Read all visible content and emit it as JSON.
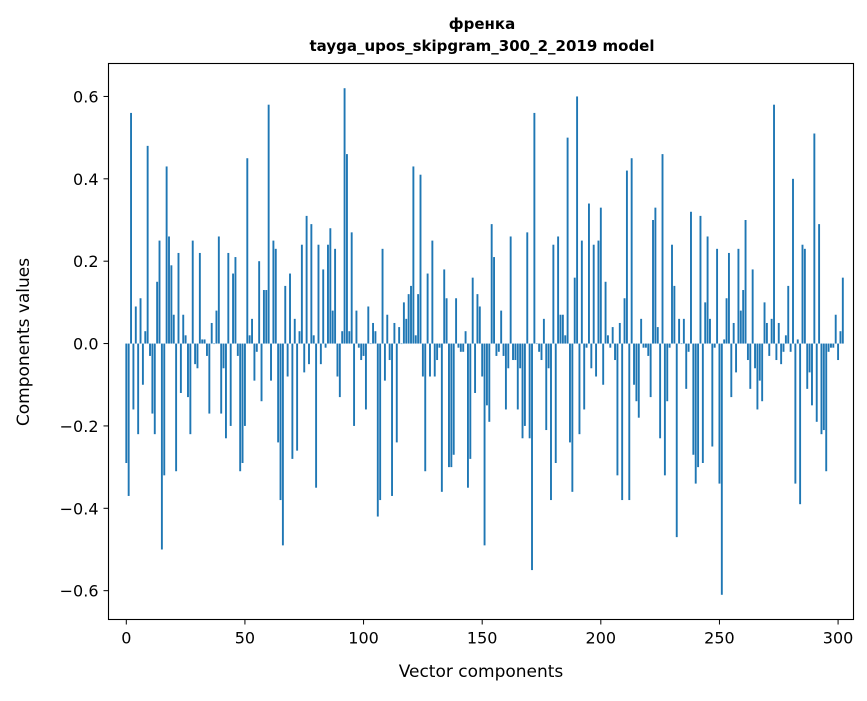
{
  "chart_data": {
    "type": "bar",
    "title": "френка",
    "subtitle": "tayga_upos_skipgram_300_2_2019 model",
    "xlabel": "Vector components",
    "ylabel": "Components values",
    "xlim": [
      -7.5,
      306.5
    ],
    "ylim": [
      -0.67,
      0.68
    ],
    "xticks": [
      0,
      50,
      100,
      150,
      200,
      250,
      300
    ],
    "yticks": [
      -0.6,
      -0.4,
      -0.2,
      0.0,
      0.2,
      0.4,
      0.6
    ],
    "ytick_labels": [
      "−0.6",
      "−0.4",
      "−0.2",
      "0.0",
      "0.2",
      "0.4",
      "0.6"
    ],
    "grid": false,
    "bar_color": "#1f77b4",
    "series": [
      {
        "values": [
          -0.29,
          -0.37,
          0.56,
          -0.16,
          0.09,
          -0.22,
          0.11,
          -0.1,
          0.03,
          0.48,
          -0.03,
          -0.17,
          -0.22,
          0.15,
          0.25,
          -0.5,
          -0.32,
          0.43,
          0.26,
          0.19,
          0.07,
          -0.31,
          0.22,
          -0.12,
          0.07,
          0.02,
          -0.13,
          -0.22,
          0.25,
          -0.05,
          -0.06,
          0.22,
          0.01,
          0.01,
          -0.03,
          -0.17,
          0.05,
          0.0,
          0.08,
          0.26,
          -0.17,
          -0.06,
          -0.23,
          0.22,
          -0.2,
          0.17,
          0.21,
          -0.03,
          -0.31,
          -0.29,
          -0.2,
          0.45,
          0.02,
          0.06,
          -0.09,
          -0.02,
          0.2,
          -0.14,
          0.13,
          0.13,
          0.58,
          -0.09,
          0.25,
          0.23,
          -0.24,
          -0.38,
          -0.49,
          0.14,
          -0.08,
          0.17,
          -0.28,
          0.06,
          -0.26,
          0.03,
          0.24,
          -0.07,
          0.31,
          -0.05,
          0.29,
          0.02,
          -0.35,
          0.24,
          -0.05,
          0.18,
          -0.01,
          0.24,
          0.28,
          0.08,
          0.23,
          -0.08,
          -0.13,
          0.03,
          0.62,
          0.46,
          0.03,
          0.27,
          -0.2,
          0.08,
          -0.01,
          -0.04,
          -0.03,
          -0.16,
          0.09,
          0.0,
          0.05,
          0.03,
          -0.42,
          -0.38,
          0.23,
          -0.09,
          0.07,
          -0.04,
          -0.37,
          0.05,
          -0.24,
          0.04,
          0.0,
          0.1,
          0.06,
          0.12,
          0.14,
          0.43,
          0.02,
          0.12,
          0.41,
          -0.08,
          -0.31,
          0.17,
          -0.08,
          0.25,
          -0.08,
          -0.04,
          -0.01,
          -0.36,
          0.18,
          0.11,
          -0.3,
          -0.3,
          -0.27,
          0.11,
          -0.01,
          -0.02,
          -0.02,
          0.03,
          -0.35,
          -0.28,
          0.16,
          -0.12,
          0.12,
          0.09,
          -0.08,
          -0.49,
          -0.15,
          -0.19,
          0.29,
          0.21,
          -0.03,
          -0.02,
          0.08,
          -0.03,
          -0.16,
          -0.06,
          0.26,
          -0.04,
          -0.04,
          -0.16,
          -0.06,
          -0.23,
          -0.2,
          0.27,
          -0.23,
          -0.55,
          0.56,
          0.0,
          -0.02,
          -0.04,
          0.06,
          -0.21,
          -0.06,
          -0.38,
          0.24,
          -0.29,
          0.26,
          0.07,
          0.07,
          0.02,
          0.5,
          -0.24,
          -0.36,
          0.16,
          0.6,
          -0.22,
          0.25,
          -0.16,
          -0.01,
          0.34,
          -0.06,
          0.24,
          -0.08,
          0.25,
          0.33,
          -0.1,
          0.15,
          0.02,
          -0.01,
          0.04,
          -0.04,
          -0.32,
          0.05,
          -0.38,
          0.11,
          0.42,
          -0.38,
          0.45,
          -0.1,
          -0.14,
          -0.18,
          0.06,
          -0.01,
          -0.01,
          -0.03,
          -0.13,
          0.3,
          0.33,
          0.04,
          -0.23,
          0.46,
          -0.32,
          -0.14,
          -0.01,
          0.24,
          0.14,
          -0.47,
          0.06,
          0.0,
          0.06,
          -0.11,
          -0.02,
          0.32,
          -0.27,
          -0.34,
          -0.3,
          0.31,
          -0.29,
          0.1,
          0.26,
          0.06,
          -0.25,
          -0.01,
          0.23,
          -0.34,
          -0.61,
          0.01,
          0.11,
          0.22,
          -0.13,
          0.05,
          -0.07,
          0.23,
          0.08,
          0.13,
          0.3,
          -0.04,
          -0.11,
          0.18,
          -0.06,
          -0.16,
          -0.09,
          -0.14,
          0.1,
          0.05,
          -0.03,
          0.06,
          0.58,
          -0.04,
          0.05,
          -0.05,
          -0.02,
          0.02,
          0.14,
          -0.02,
          0.4,
          -0.34,
          0.01,
          -0.39,
          0.24,
          0.23,
          -0.11,
          -0.07,
          -0.15,
          0.51,
          -0.19,
          0.29,
          -0.22,
          -0.21,
          -0.31,
          -0.02,
          -0.01,
          -0.01,
          0.07,
          -0.04,
          0.03,
          0.16
        ]
      }
    ]
  }
}
